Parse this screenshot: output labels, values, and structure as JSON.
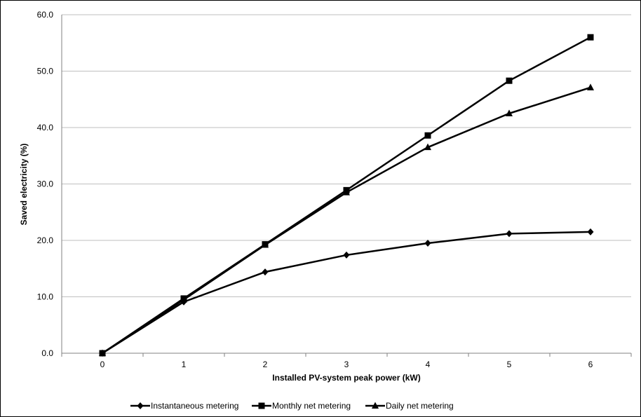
{
  "chart_data": {
    "type": "line",
    "title": "",
    "xlabel": "Installed PV-system peak power (kW)",
    "ylabel": "Saved electricity (%)",
    "categories": [
      "0",
      "1",
      "2",
      "3",
      "4",
      "5",
      "6"
    ],
    "x": [
      0,
      1,
      2,
      3,
      4,
      5,
      6
    ],
    "ylim": [
      0,
      60
    ],
    "yticks": [
      "0.0",
      "10.0",
      "20.0",
      "30.0",
      "40.0",
      "50.0",
      "60.0"
    ],
    "grid": "horizontal",
    "legend_position": "bottom",
    "series": [
      {
        "name": "Instantaneous metering",
        "marker": "diamond",
        "values": [
          0.0,
          9.1,
          14.4,
          17.4,
          19.5,
          21.2,
          21.5
        ]
      },
      {
        "name": "Monthly net metering",
        "marker": "square",
        "values": [
          0.0,
          9.7,
          19.3,
          28.9,
          38.6,
          48.3,
          56.0
        ]
      },
      {
        "name": "Daily net metering",
        "marker": "triangle",
        "values": [
          0.0,
          9.5,
          19.2,
          28.5,
          36.5,
          42.5,
          47.1
        ]
      }
    ],
    "colors": {
      "line": "#000000",
      "grid": "#bfbfbf",
      "axis": "#808080"
    }
  }
}
